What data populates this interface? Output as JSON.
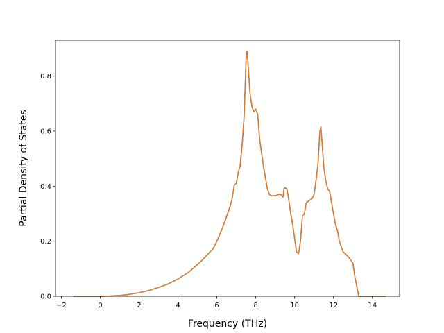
{
  "chart_data": {
    "type": "line",
    "title": "",
    "xlabel": "Frequency (THz)",
    "ylabel": "Partial Density of States",
    "xlim": [
      -2.3,
      15.4
    ],
    "ylim": [
      0.0,
      0.93
    ],
    "xticks": [
      -2,
      0,
      2,
      4,
      6,
      8,
      10,
      12,
      14
    ],
    "xtick_labels": [
      "−2",
      "0",
      "2",
      "4",
      "6",
      "8",
      "10",
      "12",
      "14"
    ],
    "yticks": [
      0.0,
      0.2,
      0.4,
      0.6,
      0.8
    ],
    "ytick_labels": [
      "0.0",
      "0.2",
      "0.4",
      "0.6",
      "0.8"
    ],
    "grid": false,
    "legend": "none",
    "series": [
      {
        "color": "#e07b27",
        "line_color_under": "#1f77b4",
        "x": [
          -1.4,
          -0.5,
          0.0,
          0.5,
          1.0,
          1.5,
          2.0,
          2.5,
          3.0,
          3.5,
          4.0,
          4.5,
          5.0,
          5.3,
          5.5,
          5.8,
          6.0,
          6.3,
          6.5,
          6.7,
          6.8,
          6.9,
          7.0,
          7.1,
          7.2,
          7.3,
          7.4,
          7.45,
          7.5,
          7.55,
          7.6,
          7.7,
          7.8,
          7.9,
          8.0,
          8.1,
          8.2,
          8.4,
          8.6,
          8.7,
          8.8,
          9.0,
          9.2,
          9.3,
          9.4,
          9.45,
          9.5,
          9.6,
          9.7,
          9.8,
          9.9,
          10.0,
          10.1,
          10.2,
          10.3,
          10.4,
          10.5,
          10.6,
          10.7,
          10.9,
          11.0,
          11.1,
          11.2,
          11.3,
          11.35,
          11.4,
          11.5,
          11.6,
          11.7,
          11.8,
          11.9,
          12.0,
          12.1,
          12.2,
          12.3,
          12.5,
          12.6,
          12.8,
          12.9,
          13.0,
          13.1,
          13.2,
          13.3,
          13.4,
          14.0,
          14.7
        ],
        "y": [
          0.0,
          0.0,
          0.0,
          0.001,
          0.003,
          0.007,
          0.013,
          0.021,
          0.032,
          0.045,
          0.063,
          0.085,
          0.115,
          0.135,
          0.15,
          0.172,
          0.2,
          0.25,
          0.29,
          0.33,
          0.36,
          0.405,
          0.41,
          0.45,
          0.475,
          0.55,
          0.65,
          0.75,
          0.86,
          0.89,
          0.85,
          0.74,
          0.69,
          0.67,
          0.68,
          0.66,
          0.57,
          0.47,
          0.39,
          0.37,
          0.365,
          0.365,
          0.37,
          0.37,
          0.36,
          0.39,
          0.395,
          0.39,
          0.35,
          0.3,
          0.26,
          0.21,
          0.16,
          0.155,
          0.2,
          0.29,
          0.3,
          0.34,
          0.345,
          0.355,
          0.37,
          0.42,
          0.48,
          0.6,
          0.615,
          0.57,
          0.47,
          0.42,
          0.39,
          0.38,
          0.34,
          0.3,
          0.26,
          0.24,
          0.2,
          0.16,
          0.155,
          0.14,
          0.13,
          0.12,
          0.07,
          0.035,
          0.0,
          0.0,
          0.0,
          0.0
        ]
      }
    ]
  }
}
